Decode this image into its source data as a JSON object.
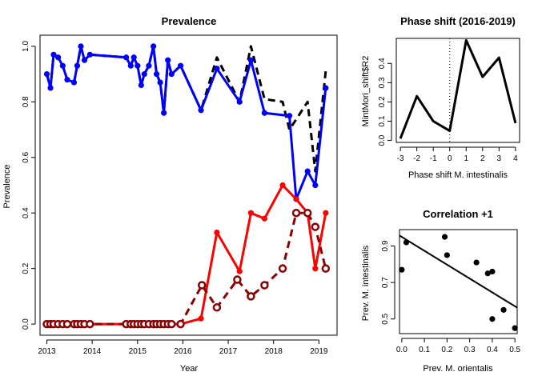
{
  "chart_data": [
    {
      "type": "line",
      "title": "Prevalence",
      "xlabel": "Year",
      "ylabel": "Prevalence",
      "xlim": [
        2012.85,
        2019.4
      ],
      "ylim": [
        -0.04,
        1.04
      ],
      "xticks": [
        2013,
        2014,
        2015,
        2016,
        2017,
        2018,
        2019
      ],
      "yticks": [
        0.0,
        0.2,
        0.4,
        0.6,
        0.8,
        1.0
      ],
      "series": [
        {
          "style": "dashed",
          "color": "#000000",
          "marker": "none",
          "x": [
            2013.0,
            2013.08,
            2013.15,
            2013.25,
            2013.35,
            2013.45,
            2013.6,
            2013.67,
            2013.75,
            2013.83,
            2013.95,
            2014.75,
            2014.85,
            2014.92,
            2015.0,
            2015.08,
            2015.15,
            2015.25,
            2015.35,
            2015.42,
            2015.5,
            2015.58,
            2015.67,
            2015.75,
            2015.95,
            2016.4,
            2016.75,
            2017.25,
            2017.5,
            2017.8,
            2018.2,
            2018.35,
            2018.55,
            2018.75,
            2018.92,
            2019.15
          ],
          "y": [
            0.9,
            0.85,
            0.97,
            0.96,
            0.93,
            0.88,
            0.87,
            0.93,
            1.0,
            0.95,
            0.97,
            0.96,
            0.93,
            0.96,
            0.93,
            0.86,
            0.9,
            0.93,
            1.0,
            0.9,
            0.87,
            0.76,
            0.95,
            0.9,
            0.93,
            0.77,
            0.96,
            0.8,
            1.0,
            0.81,
            0.8,
            0.7,
            0.75,
            0.8,
            0.55,
            0.91
          ]
        },
        {
          "style": "solid",
          "color": "#0000ff",
          "marker": "filled",
          "x": [
            2013.0,
            2013.08,
            2013.15,
            2013.25,
            2013.35,
            2013.45,
            2013.6,
            2013.67,
            2013.75,
            2013.83,
            2013.95,
            2014.75,
            2014.85,
            2014.92,
            2015.0,
            2015.08,
            2015.15,
            2015.25,
            2015.35,
            2015.42,
            2015.5,
            2015.58,
            2015.67,
            2015.75,
            2015.95,
            2016.4,
            2016.75,
            2017.25,
            2017.5,
            2017.8,
            2018.35,
            2018.5,
            2018.75,
            2018.92,
            2019.15
          ],
          "y": [
            0.9,
            0.85,
            0.97,
            0.96,
            0.93,
            0.88,
            0.87,
            0.93,
            1.0,
            0.95,
            0.97,
            0.96,
            0.93,
            0.96,
            0.93,
            0.86,
            0.9,
            0.93,
            1.0,
            0.9,
            0.87,
            0.76,
            0.95,
            0.9,
            0.93,
            0.77,
            0.92,
            0.8,
            0.95,
            0.76,
            0.75,
            0.45,
            0.55,
            0.5,
            0.85
          ]
        },
        {
          "style": "solid",
          "color": "#ff0000",
          "marker": "filled",
          "x": [
            2013.0,
            2013.08,
            2013.15,
            2013.25,
            2013.35,
            2013.45,
            2013.6,
            2013.67,
            2013.75,
            2013.83,
            2013.95,
            2014.75,
            2014.85,
            2014.92,
            2015.0,
            2015.08,
            2015.15,
            2015.25,
            2015.35,
            2015.42,
            2015.5,
            2015.58,
            2015.67,
            2015.75,
            2015.95,
            2016.4,
            2016.75,
            2017.25,
            2017.5,
            2017.8,
            2018.2,
            2018.5,
            2018.75,
            2018.92,
            2019.15
          ],
          "y": [
            0,
            0,
            0,
            0,
            0,
            0,
            0,
            0,
            0,
            0,
            0,
            0,
            0,
            0,
            0,
            0,
            0,
            0,
            0,
            0,
            0,
            0,
            0,
            0,
            0,
            0.02,
            0.33,
            0.19,
            0.4,
            0.38,
            0.5,
            0.45,
            0.4,
            0.2,
            0.4
          ]
        },
        {
          "style": "dashed",
          "color": "#8b0000",
          "marker": "open",
          "x": [
            2013.0,
            2013.08,
            2013.15,
            2013.25,
            2013.35,
            2013.45,
            2013.6,
            2013.67,
            2013.75,
            2013.83,
            2013.95,
            2014.75,
            2014.85,
            2014.92,
            2015.0,
            2015.08,
            2015.15,
            2015.25,
            2015.35,
            2015.42,
            2015.5,
            2015.58,
            2015.67,
            2015.75,
            2015.95,
            2016.42,
            2016.75,
            2017.2,
            2017.5,
            2017.8,
            2018.2,
            2018.5,
            2018.75,
            2018.92,
            2019.15
          ],
          "y": [
            0,
            0,
            0,
            0,
            0,
            0,
            0,
            0,
            0,
            0,
            0,
            0,
            0,
            0,
            0,
            0,
            0,
            0,
            0,
            0,
            0,
            0,
            0,
            0,
            0,
            0.14,
            0.06,
            0.16,
            0.1,
            0.14,
            0.2,
            0.4,
            0.4,
            0.35,
            0.2
          ]
        }
      ]
    },
    {
      "type": "line",
      "title": "Phase shift (2016-2019)",
      "xlabel": "Phase shift M. intestinalis",
      "ylabel": "MintMori_shift$R2",
      "xlim": [
        -3.25,
        4.25
      ],
      "ylim": [
        -0.01,
        0.53
      ],
      "xticks": [
        -3,
        -2,
        -1,
        0,
        1,
        2,
        3,
        4
      ],
      "yticks": [
        0.0,
        0.1,
        0.2,
        0.3,
        0.4
      ],
      "vline": 0,
      "x": [
        -3,
        -2,
        -1,
        0,
        1,
        2,
        3,
        4
      ],
      "y": [
        0.01,
        0.23,
        0.1,
        0.05,
        0.52,
        0.33,
        0.43,
        0.09
      ]
    },
    {
      "type": "scatter",
      "title": "Correlation +1",
      "xlabel": "Prev. M. orientalis",
      "ylabel": "Prev. M. intestinalis",
      "xlim": [
        -0.01,
        0.51
      ],
      "ylim": [
        0.42,
        0.99
      ],
      "xticks": [
        0.0,
        0.1,
        0.2,
        0.3,
        0.4,
        0.5
      ],
      "yticks": [
        0.5,
        0.7,
        0.9
      ],
      "x": [
        0.0,
        0.02,
        0.19,
        0.2,
        0.33,
        0.38,
        0.4,
        0.4,
        0.45,
        0.5
      ],
      "y": [
        0.77,
        0.92,
        0.95,
        0.85,
        0.81,
        0.75,
        0.76,
        0.5,
        0.55,
        0.45
      ],
      "fit": {
        "intercept": 0.95,
        "slope": -0.76
      }
    }
  ]
}
